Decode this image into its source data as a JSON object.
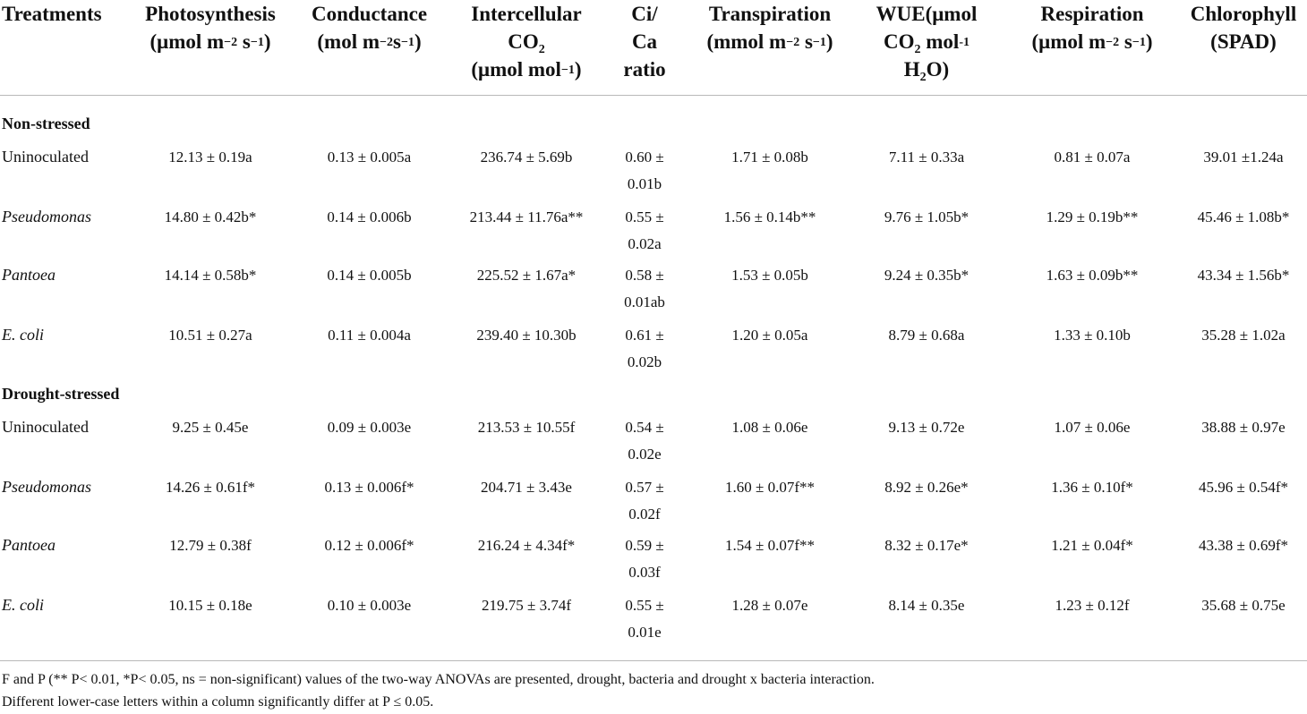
{
  "headers": {
    "treatments": "Treatments",
    "photosynthesis": [
      "Photosynthesis",
      "(μmol m",
      "−2",
      " s",
      "−1",
      ")"
    ],
    "conductance": [
      "Conductance",
      "(mol m",
      "−2",
      "s",
      "−1",
      ")"
    ],
    "intercellular": [
      "Intercellular",
      "CO",
      "2",
      "(μmol mol",
      "−1",
      ")"
    ],
    "cica": [
      "Ci/",
      "Ca",
      "ratio"
    ],
    "transpiration": [
      "Transpiration",
      "(mmol m",
      "−2",
      " s",
      "−1",
      ")"
    ],
    "wue": [
      "WUE(μmol",
      "CO",
      "2",
      " mol",
      "-1",
      "H",
      "2",
      "O)"
    ],
    "respiration": [
      "Respiration",
      "(μmol m",
      "−2",
      " s",
      "−1",
      ")"
    ],
    "chlorophyll": [
      "Chlorophyll",
      "(SPAD)"
    ]
  },
  "groups": {
    "non_stressed": "Non-stressed",
    "drought_stressed": "Drought-stressed"
  },
  "rows": [
    {
      "label": "Uninoculated",
      "ps": "12.13 ± 0.19a",
      "cond": "0.13 ± 0.005a",
      "ci": "236.74 ± 5.69b",
      "cica1": "0.60 ±",
      "cica2": "0.01b",
      "tr": "1.71 ± 0.08b",
      "wue": "7.11 ± 0.33a",
      "resp": "0.81 ± 0.07a",
      "chl": "39.01 ±1.24a"
    },
    {
      "label": "Pseudomonas",
      "ps": "14.80 ± 0.42b*",
      "cond": "0.14 ± 0.006b",
      "ci": "213.44 ± 11.76a**",
      "cica1": "0.55 ±",
      "cica2": "0.02a",
      "tr": "1.56 ± 0.14b**",
      "wue": "9.76 ± 1.05b*",
      "resp": "1.29 ± 0.19b**",
      "chl": "45.46 ± 1.08b*"
    },
    {
      "label": "Pantoea",
      "ps": "14.14 ± 0.58b*",
      "cond": "0.14 ± 0.005b",
      "ci": "225.52 ± 1.67a*",
      "cica1": "0.58 ±",
      "cica2": "0.01ab",
      "tr": "1.53 ± 0.05b",
      "wue": "9.24 ± 0.35b*",
      "resp": "1.63 ± 0.09b**",
      "chl": "43.34 ± 1.56b*"
    },
    {
      "label": "E. coli",
      "ps": "10.51 ± 0.27a",
      "cond": "0.11 ± 0.004a",
      "ci": "239.40 ± 10.30b",
      "cica1": "0.61 ±",
      "cica2": "0.02b",
      "tr": "1.20 ± 0.05a",
      "wue": "8.79 ± 0.68a",
      "resp": "1.33 ± 0.10b",
      "chl": "35.28 ± 1.02a"
    },
    {
      "label": "Uninoculated",
      "ps": "9.25 ± 0.45e",
      "cond": "0.09 ± 0.003e",
      "ci": "213.53 ± 10.55f",
      "cica1": "0.54 ±",
      "cica2": "0.02e",
      "tr": "1.08 ± 0.06e",
      "wue": "9.13 ± 0.72e",
      "resp": "1.07 ± 0.06e",
      "chl": "38.88 ± 0.97e"
    },
    {
      "label": "Pseudomonas",
      "ps": "14.26 ± 0.61f*",
      "cond": "0.13 ± 0.006f*",
      "ci": "204.71 ± 3.43e",
      "cica1": "0.57 ±",
      "cica2": "0.02f",
      "tr": "1.60 ± 0.07f**",
      "wue": "8.92 ± 0.26e*",
      "resp": "1.36 ± 0.10f*",
      "chl": "45.96 ± 0.54f*"
    },
    {
      "label": "Pantoea",
      "ps": "12.79 ± 0.38f",
      "cond": "0.12 ± 0.006f*",
      "ci": "216.24 ± 4.34f*",
      "cica1": "0.59 ±",
      "cica2": "0.03f",
      "tr": "1.54 ± 0.07f**",
      "wue": "8.32 ± 0.17e*",
      "resp": "1.21 ± 0.04f*",
      "chl": "43.38 ± 0.69f*"
    },
    {
      "label": "E. coli",
      "ps": "10.15 ± 0.18e",
      "cond": "0.10 ± 0.003e",
      "ci": "219.75 ± 3.74f",
      "cica1": "0.55 ±",
      "cica2": "0.01e",
      "tr": "1.28 ± 0.07e",
      "wue": "8.14 ± 0.35e",
      "resp": "1.23 ± 0.12f",
      "chl": "35.68 ± 0.75e"
    }
  ],
  "footnotes": [
    "F and P (** P< 0.01, *P< 0.05, ns = non-significant) values of the two-way ANOVAs are presented, drought, bacteria and drought x bacteria interaction.",
    "Different lower-case letters within a column significantly differ at P ≤ 0.05."
  ]
}
